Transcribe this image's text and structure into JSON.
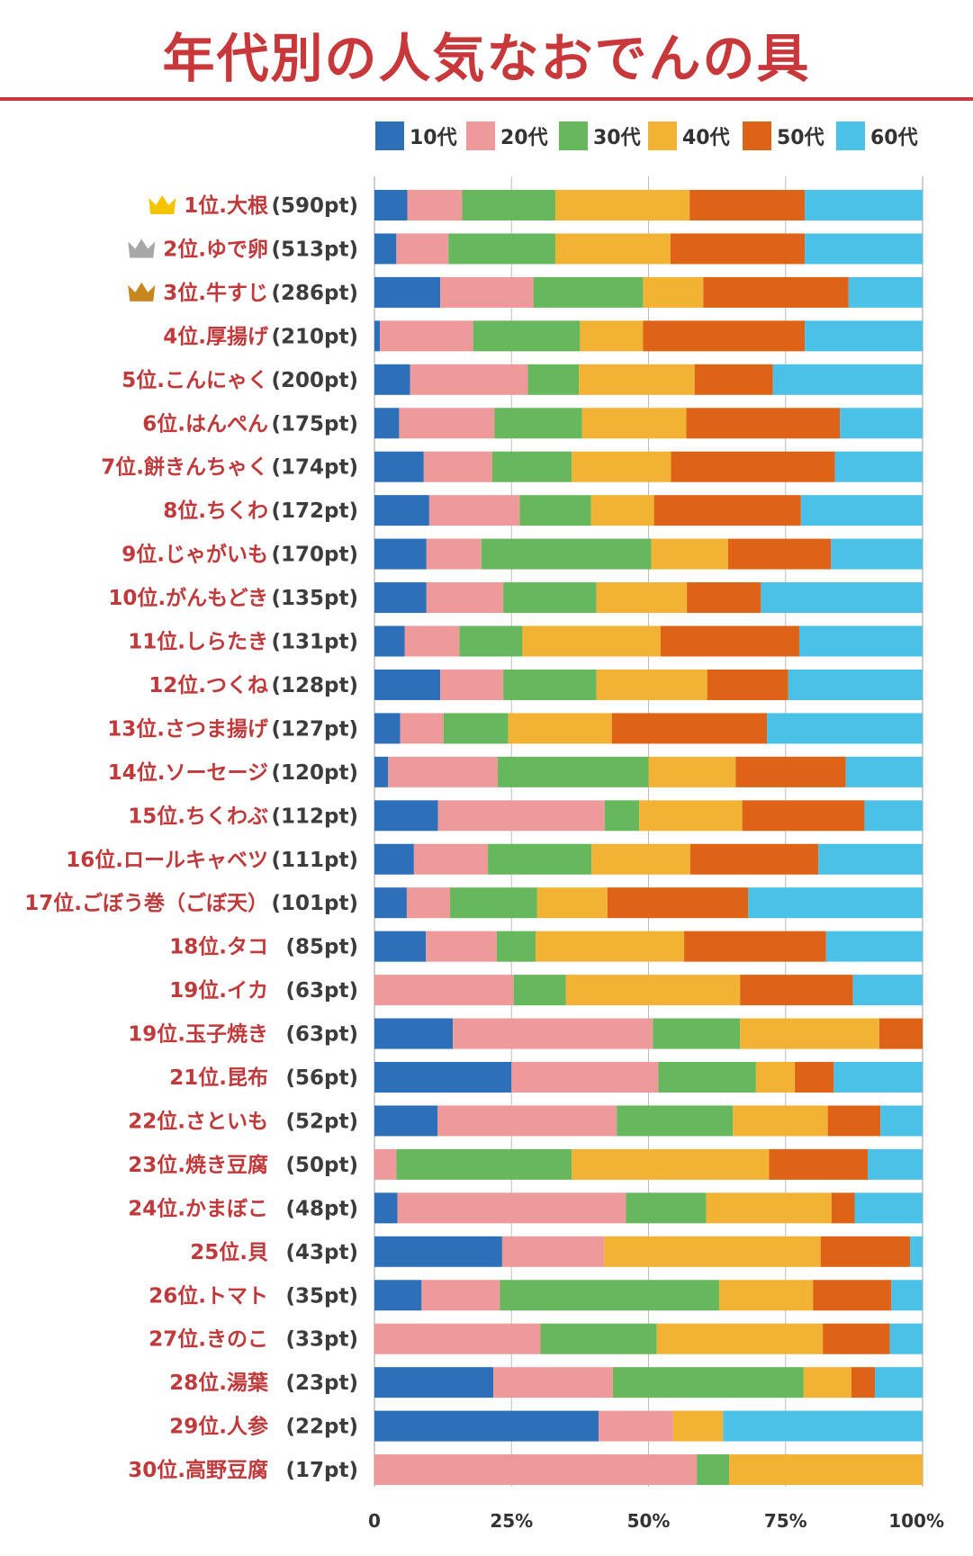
{
  "title": "年代別の人気なおでんの具",
  "colors": {
    "accent": "#c8373a",
    "series": [
      "#2e6fba",
      "#ef9a9a",
      "#67b85c",
      "#f2b234",
      "#de6316",
      "#4cc1e8"
    ],
    "crowns": [
      "#f5c400",
      "#a8a8a8",
      "#c8871e"
    ]
  },
  "chart_data": {
    "type": "bar",
    "orientation": "horizontal",
    "stacked": true,
    "normalized": true,
    "title": "年代別の人気なおでんの具",
    "categories": [
      "1位.大根",
      "2位.ゆで卵",
      "3位.牛すじ",
      "4位.厚揚げ",
      "5位.こんにゃく",
      "6位.はんぺん",
      "7位.餅きんちゃく",
      "8位.ちくわ",
      "9位.じゃがいも",
      "10位.がんもどき",
      "11位.しらたき",
      "12位.つくね",
      "13位.さつま揚げ",
      "14位.ソーセージ",
      "15位.ちくわぶ",
      "16位.ロールキャベツ",
      "17位.ごぼう巻（ごぼ天）",
      "18位.タコ",
      "19位.イカ",
      "19位.玉子焼き",
      "21位.昆布",
      "22位.さといも",
      "23位.焼き豆腐",
      "24位.かまぼこ",
      "25位.貝",
      "26位.トマト",
      "27位.きのこ",
      "28位.湯葉",
      "29位.人参",
      "30位.高野豆腐"
    ],
    "points": [
      "(590pt)",
      "(513pt)",
      "(286pt)",
      "(210pt)",
      "(200pt)",
      "(175pt)",
      "(174pt)",
      "(172pt)",
      "(170pt)",
      "(135pt)",
      "(131pt)",
      "(128pt)",
      "(127pt)",
      "(120pt)",
      "(112pt)",
      "(111pt)",
      "(101pt)",
      "(85pt)",
      "(63pt)",
      "(63pt)",
      "(56pt)",
      "(52pt)",
      "(50pt)",
      "(48pt)",
      "(43pt)",
      "(35pt)",
      "(33pt)",
      "(23pt)",
      "(22pt)",
      "(17pt)"
    ],
    "crown_ranks": [
      1,
      2,
      3
    ],
    "series": [
      {
        "name": "10代",
        "values": [
          6,
          4,
          12,
          1,
          6.5,
          4.5,
          9,
          10,
          9.5,
          9.5,
          5.5,
          12,
          4.7,
          2.5,
          11.6,
          7.2,
          5.9,
          9.4,
          0,
          14.3,
          25,
          11.5,
          0,
          4.2,
          23.3,
          8.6,
          0,
          21.7,
          40.9,
          0
        ]
      },
      {
        "name": "20代",
        "values": [
          10,
          9.5,
          17,
          17,
          21.5,
          17.4,
          12.5,
          16.5,
          10,
          14,
          10,
          11.5,
          7.9,
          20,
          30.4,
          13.5,
          7.9,
          12.9,
          25.4,
          36.5,
          26.8,
          32.7,
          4,
          41.7,
          18.6,
          14.3,
          30.3,
          21.8,
          13.6,
          58.8
        ]
      },
      {
        "name": "30代",
        "values": [
          17,
          19.5,
          20,
          19.5,
          9.3,
          16,
          14.5,
          13,
          31,
          17,
          11.5,
          17,
          11.8,
          27.5,
          6.3,
          18.9,
          15.9,
          7.1,
          9.5,
          15.9,
          17.8,
          21.2,
          32,
          14.6,
          0,
          40,
          21.2,
          34.8,
          0,
          5.9
        ]
      },
      {
        "name": "40代",
        "values": [
          24.5,
          21,
          11,
          11.5,
          21.1,
          19,
          18.1,
          11.5,
          14,
          16.5,
          25.2,
          20.2,
          18.9,
          15.9,
          18.8,
          18,
          12.8,
          27.1,
          31.8,
          25.4,
          7.1,
          17.3,
          36,
          22.9,
          39.5,
          17.1,
          30.3,
          8.7,
          9.1,
          35.3
        ]
      },
      {
        "name": "50代",
        "values": [
          21,
          24.5,
          26.5,
          29.5,
          14.3,
          28,
          29.9,
          26.8,
          18.8,
          13.5,
          25.3,
          14.8,
          28.3,
          20.1,
          22.3,
          23.4,
          25.7,
          25.9,
          20.6,
          7.9,
          7.1,
          9.6,
          18,
          4.2,
          16.3,
          14.3,
          12.2,
          4.3,
          0,
          0
        ]
      },
      {
        "name": "60代",
        "values": [
          21.5,
          21.5,
          13.5,
          21.5,
          27.3,
          15.1,
          16,
          22.2,
          16.7,
          29.5,
          22.5,
          24.5,
          28.4,
          14,
          10.6,
          19,
          31.8,
          17.6,
          12.7,
          0,
          16.2,
          7.7,
          10,
          12.4,
          2.3,
          5.7,
          6,
          8.7,
          36.4,
          0
        ]
      }
    ],
    "x_ticks": [
      "0",
      "25%",
      "50%",
      "75%",
      "100%"
    ],
    "xlim": [
      0,
      100
    ],
    "grid": true,
    "legend": "top"
  }
}
